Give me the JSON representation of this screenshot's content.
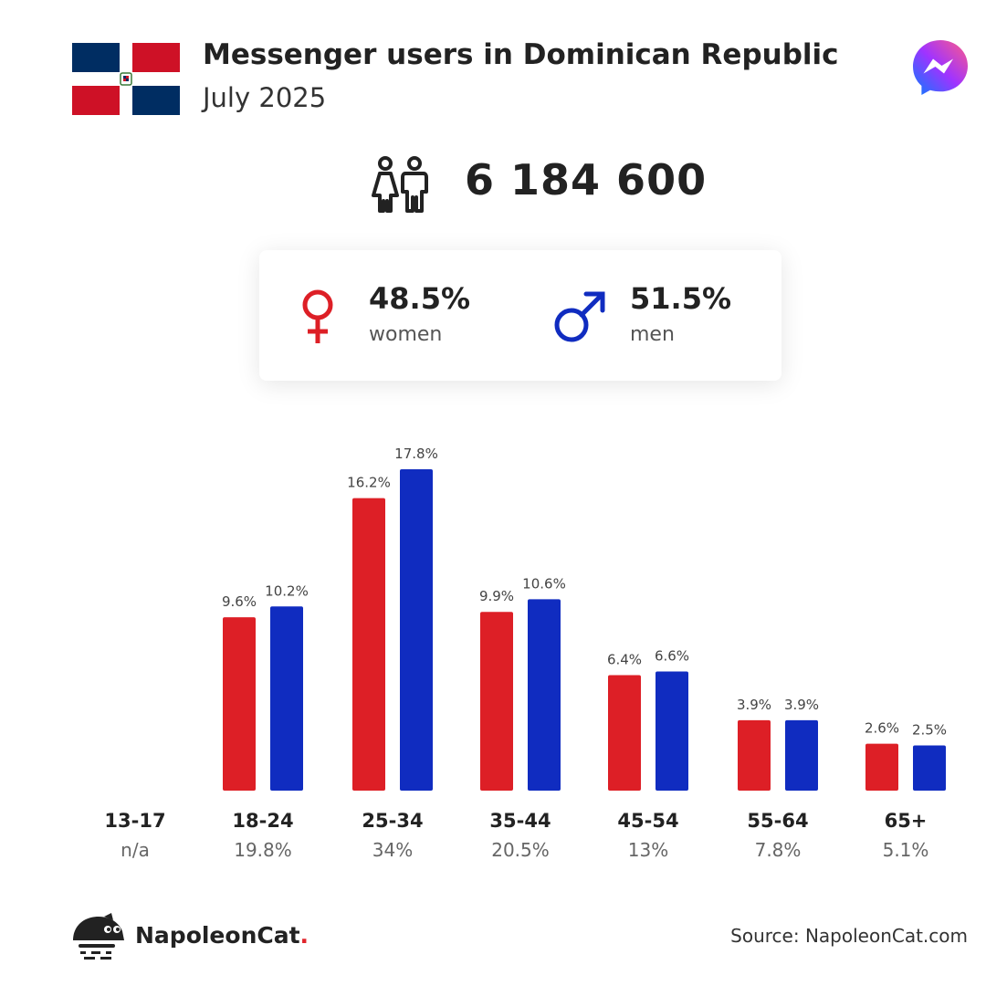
{
  "header": {
    "title": "Messenger users in Dominican Republic",
    "subtitle": "July 2025"
  },
  "summary": {
    "total": "6 184 600",
    "women_pct": "48.5%",
    "women_label": "women",
    "men_pct": "51.5%",
    "men_label": "men"
  },
  "colors": {
    "women": "#dd1f26",
    "men": "#102cc0",
    "flag_blue": "#002d62",
    "flag_red": "#ce1126"
  },
  "icons": [
    "dominican-flag-icon",
    "messenger-logo-icon",
    "people-icon",
    "female-symbol-icon",
    "male-symbol-icon",
    "napoleoncat-logo-icon"
  ],
  "chart_data": {
    "type": "bar",
    "categories": [
      "13-17",
      "18-24",
      "25-34",
      "35-44",
      "45-54",
      "55-64",
      "65+"
    ],
    "category_totals": [
      "n/a",
      "19.8%",
      "34%",
      "20.5%",
      "13%",
      "7.8%",
      "5.1%"
    ],
    "series": [
      {
        "values": [
          null,
          9.6,
          16.2,
          9.9,
          6.4,
          3.9,
          2.6
        ],
        "labels": [
          "",
          "9.6%",
          "16.2%",
          "9.9%",
          "6.4%",
          "3.9%",
          "2.6%"
        ],
        "color": "#dd1f26"
      },
      {
        "values": [
          null,
          10.2,
          17.8,
          10.6,
          6.6,
          3.9,
          2.5
        ],
        "labels": [
          "",
          "10.2%",
          "17.8%",
          "10.6%",
          "6.6%",
          "3.9%",
          "2.5%"
        ],
        "color": "#102cc0"
      }
    ],
    "ylim": [
      0,
      17.8
    ],
    "grid": false,
    "legend": "none"
  },
  "footer": {
    "brand": "NapoleonCat",
    "brand_dot": ".",
    "source": "Source: NapoleonCat.com"
  }
}
